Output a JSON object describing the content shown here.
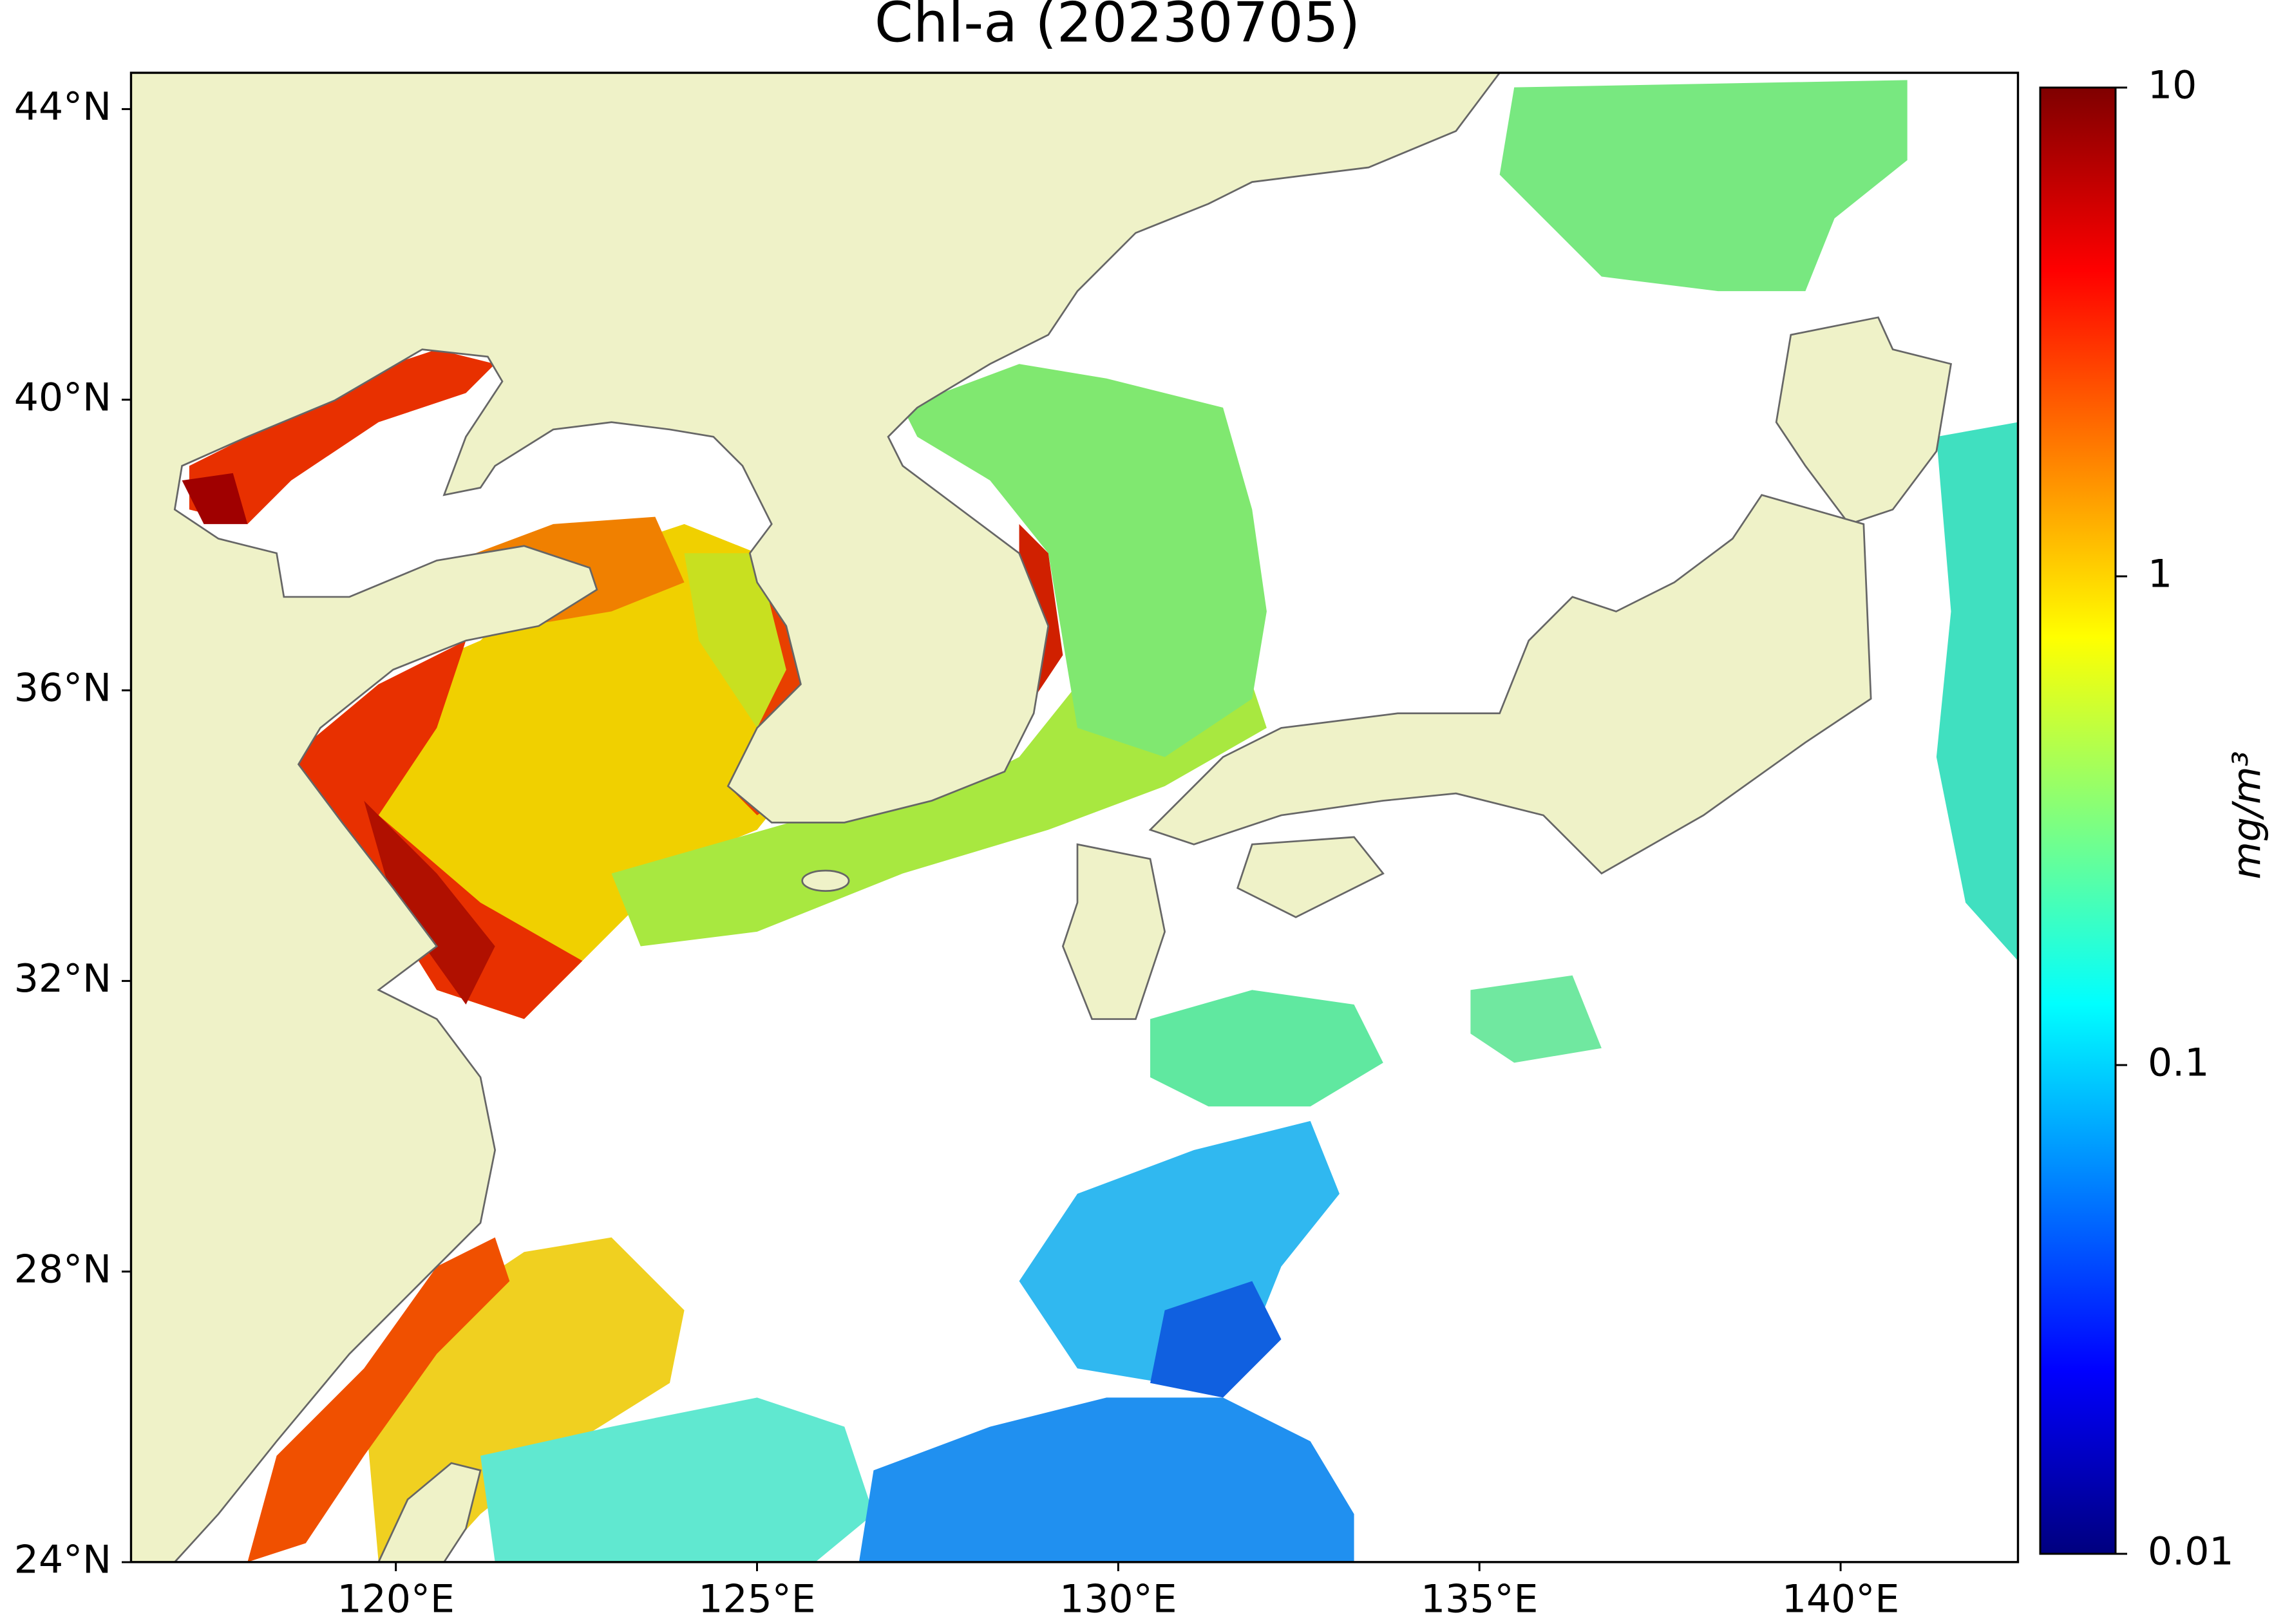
{
  "chart_data": {
    "type": "map",
    "title": "Chl-a (20230705)",
    "xlim": [
      116.33,
      142.46
    ],
    "ylim": [
      24,
      44.5
    ],
    "xticks": [
      {
        "value": 120,
        "label": "120°E"
      },
      {
        "value": 125,
        "label": "125°E"
      },
      {
        "value": 130,
        "label": "130°E"
      },
      {
        "value": 135,
        "label": "135°E"
      },
      {
        "value": 140,
        "label": "140°E"
      }
    ],
    "yticks": [
      {
        "value": 24,
        "label": "24°N"
      },
      {
        "value": 28,
        "label": "28°N"
      },
      {
        "value": 32,
        "label": "32°N"
      },
      {
        "value": 36,
        "label": "36°N"
      },
      {
        "value": 40,
        "label": "40°N"
      },
      {
        "value": 44,
        "label": "44°N"
      }
    ],
    "colorbar": {
      "label": "mg/m³",
      "scale": "log",
      "lim": [
        0.01,
        10
      ],
      "ticks": [
        0.01,
        0.1,
        1,
        10
      ],
      "colormap": "jet"
    }
  }
}
